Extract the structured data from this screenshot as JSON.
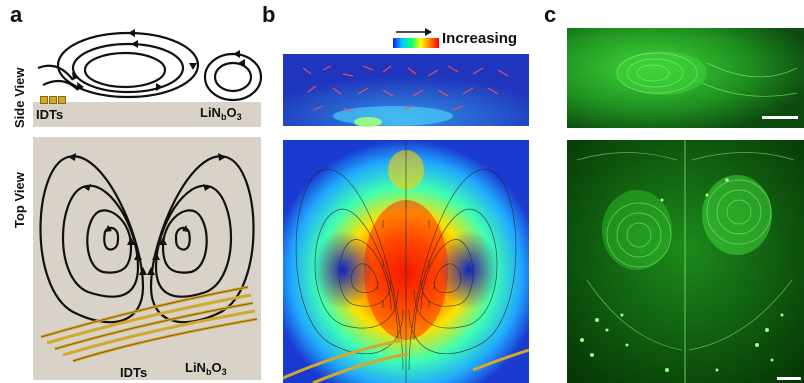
{
  "panels": {
    "a": "a",
    "b": "b",
    "c": "c"
  },
  "side_view_label": "Side View",
  "top_view_label": "Top View",
  "idts_label": "IDTs",
  "substrate": {
    "main": "LiN",
    "sub1": "b",
    "mid": "O",
    "sub2": "3"
  },
  "legend_label": "Increasing",
  "colors": {
    "beige": "#d9d2c8",
    "electrode_gold": "#d4a82a",
    "fluorescent_green": "#2fbf2a"
  }
}
